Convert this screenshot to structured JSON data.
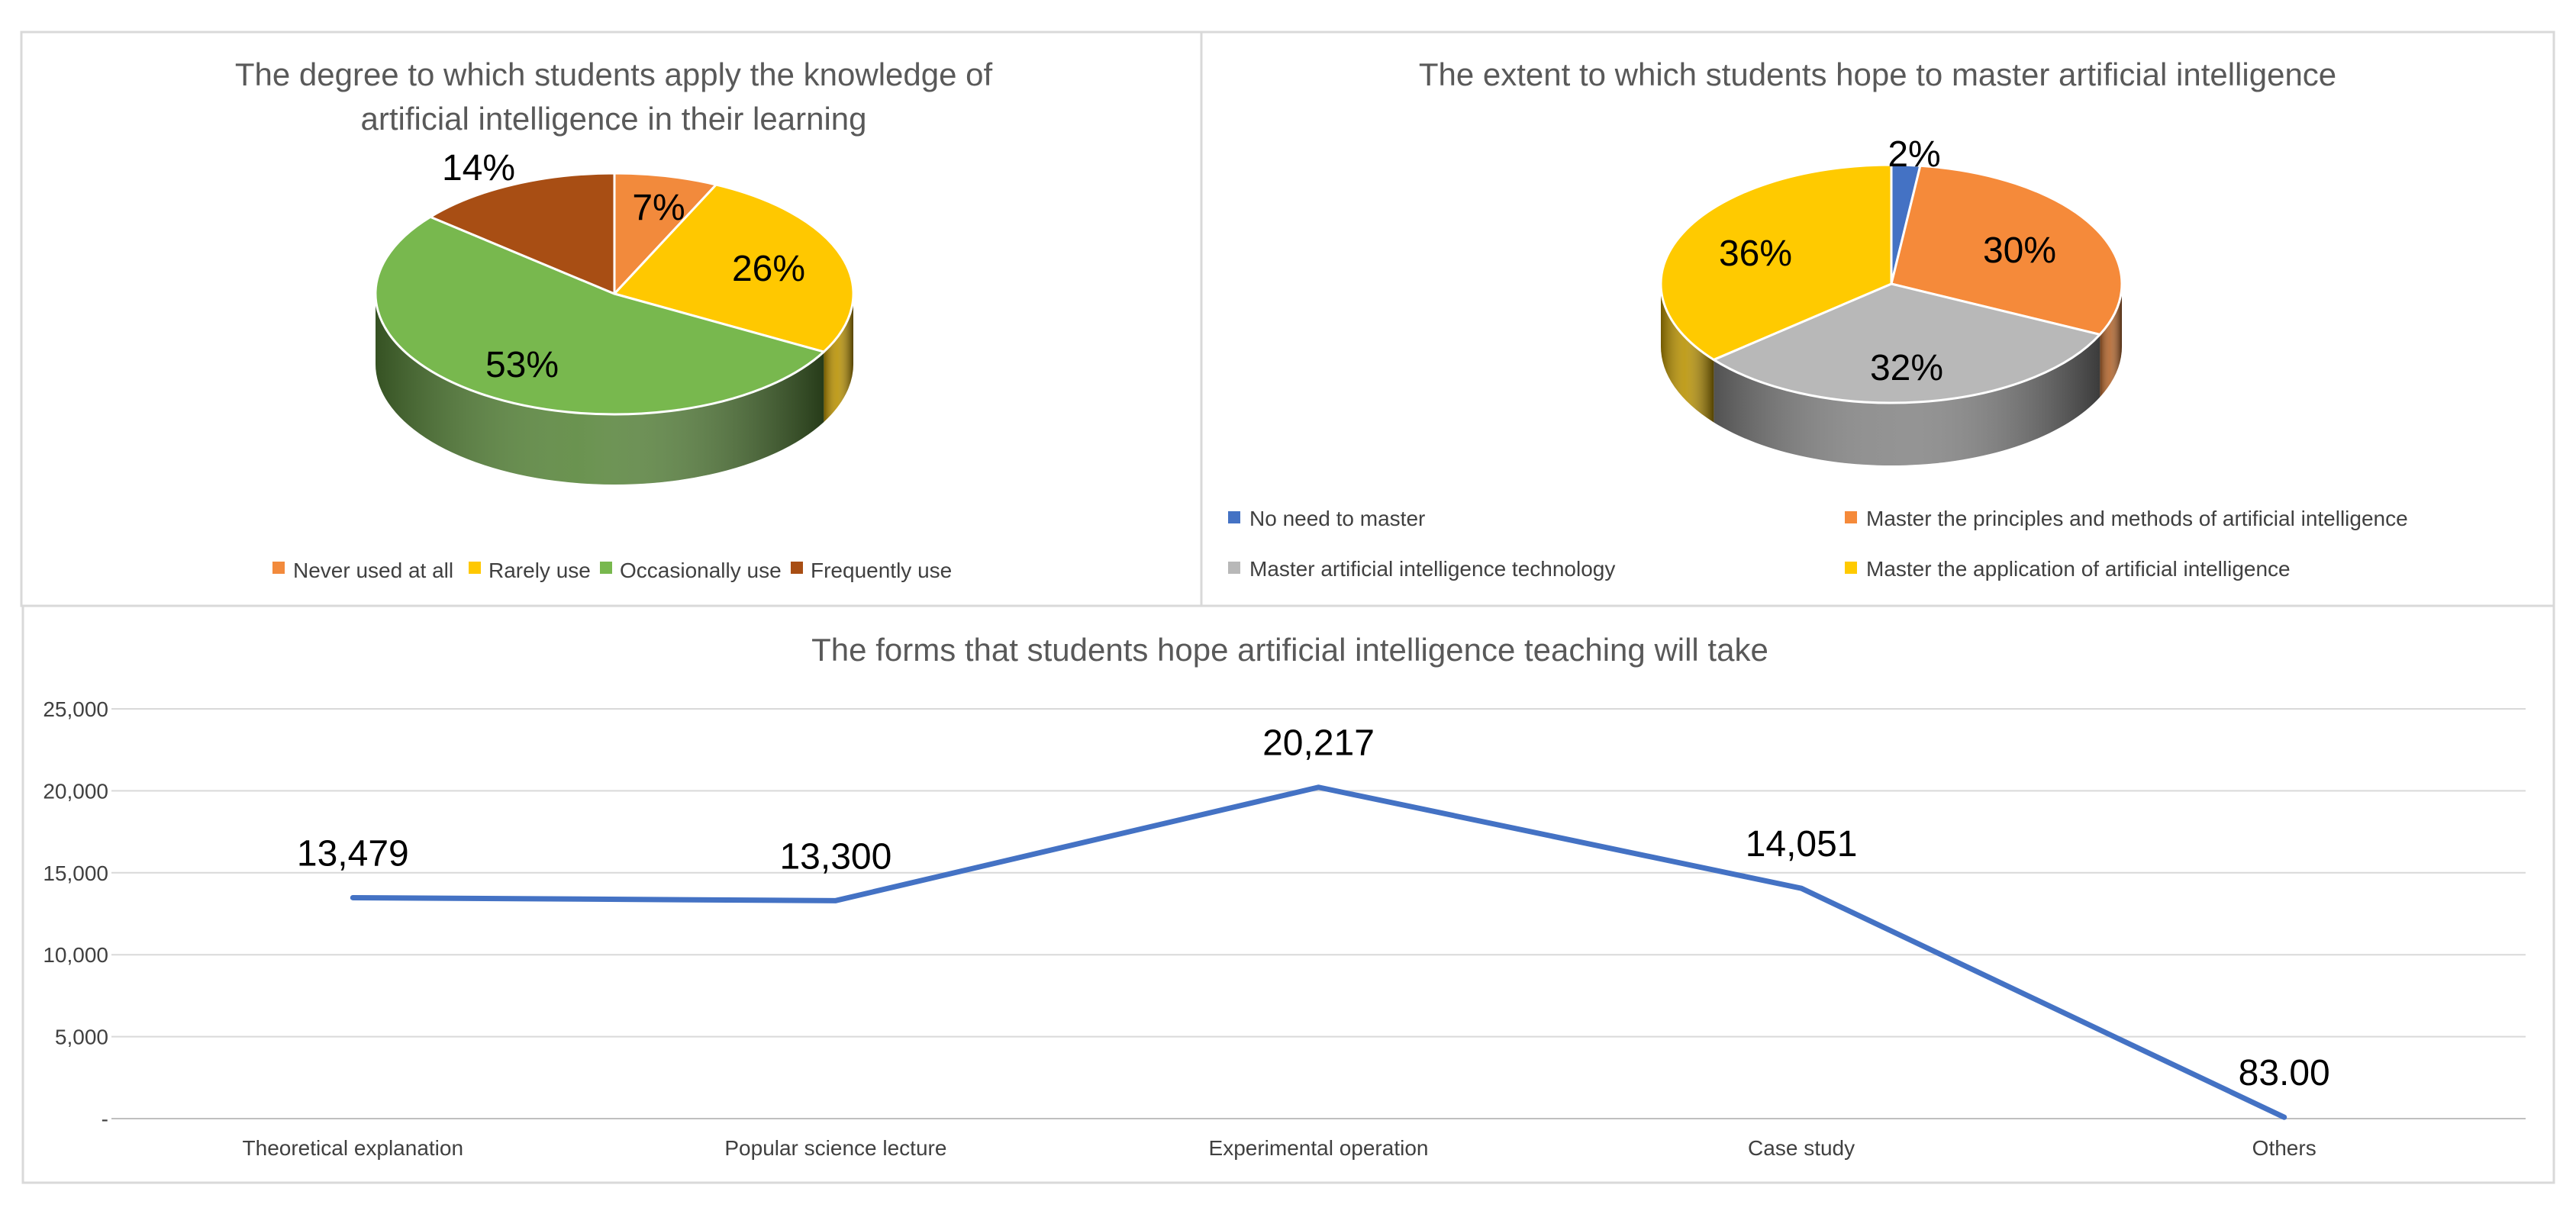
{
  "chart_data": [
    {
      "type": "pie",
      "title": "The degree to which students apply the knowledge of artificial intelligence in their learning",
      "title_lines": [
        "The degree to which students apply the knowledge of",
        "artificial intelligence in their learning"
      ],
      "slices": [
        {
          "label": "Never used at all",
          "value": 7,
          "display": "7%",
          "color": "#F28A3C"
        },
        {
          "label": "Rarely use",
          "value": 26,
          "display": "26%",
          "color": "#FFC800"
        },
        {
          "label": "Occasionally use",
          "value": 53,
          "display": "53%",
          "color": "#78B84E"
        },
        {
          "label": "Frequently use",
          "value": 14,
          "display": "14%",
          "color": "#A84E14"
        }
      ],
      "legend_position": "bottom"
    },
    {
      "type": "pie",
      "title": "The extent to which students hope to master artificial intelligence",
      "slices": [
        {
          "label": "No need to master",
          "value": 2,
          "display": "2%",
          "color": "#4472C4"
        },
        {
          "label": "Master the principles and methods of artificial intelligence",
          "value": 30,
          "display": "30%",
          "color": "#F58A3A"
        },
        {
          "label": "Master artificial intelligence technology",
          "value": 32,
          "display": "32%",
          "color": "#B8B8B8"
        },
        {
          "label": "Master the application of artificial intelligence",
          "value": 36,
          "display": "36%",
          "color": "#FFCA00"
        }
      ],
      "legend_position": "bottom"
    },
    {
      "type": "line",
      "title": "The forms that students hope artificial intelligence teaching will take",
      "categories": [
        "Theoretical explanation",
        "Popular science lecture",
        "Experimental operation",
        "Case study",
        "Others"
      ],
      "values": [
        13479,
        13300,
        20217,
        14051,
        83
      ],
      "data_labels": [
        "13,479",
        "13,300",
        "20,217",
        "14,051",
        "83.00"
      ],
      "ylim": [
        0,
        25000
      ],
      "yticks": [
        0,
        5000,
        10000,
        15000,
        20000,
        25000
      ],
      "ytick_labels": [
        "-",
        "5,000",
        "10,000",
        "15,000",
        "20,000",
        "25,000"
      ],
      "grid": true,
      "line_color": "#4472C4"
    }
  ]
}
